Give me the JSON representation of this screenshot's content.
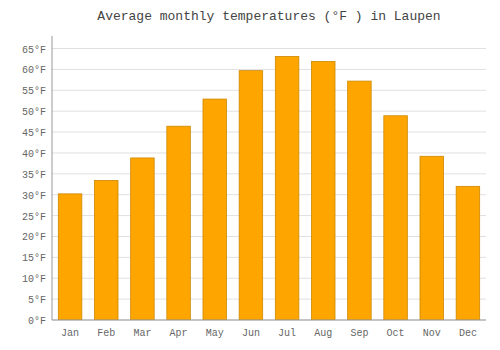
{
  "chart_data": {
    "type": "bar",
    "title": "Average monthly temperatures (°F ) in Laupen",
    "categories": [
      "Jan",
      "Feb",
      "Mar",
      "Apr",
      "May",
      "Jun",
      "Jul",
      "Aug",
      "Sep",
      "Oct",
      "Nov",
      "Dec"
    ],
    "values": [
      30.2,
      33.4,
      38.8,
      46.4,
      52.9,
      59.7,
      63.1,
      61.9,
      57.2,
      48.9,
      39.2,
      32.0
    ],
    "color": "#FFA500",
    "ylim": [
      0,
      68
    ],
    "yticks": [
      {
        "value": 0,
        "label": "0°F"
      },
      {
        "value": 5,
        "label": "5°F"
      },
      {
        "value": 10,
        "label": "10°F"
      },
      {
        "value": 15,
        "label": "15°F"
      },
      {
        "value": 20,
        "label": "20°F"
      },
      {
        "value": 25,
        "label": "25°F"
      },
      {
        "value": 30,
        "label": "30°F"
      },
      {
        "value": 35,
        "label": "35°F"
      },
      {
        "value": 40,
        "label": "40°F"
      },
      {
        "value": 45,
        "label": "45°F"
      },
      {
        "value": 50,
        "label": "50°F"
      },
      {
        "value": 55,
        "label": "55°F"
      },
      {
        "value": 60,
        "label": "60°F"
      },
      {
        "value": 65,
        "label": "65°F"
      }
    ],
    "grid": true
  }
}
